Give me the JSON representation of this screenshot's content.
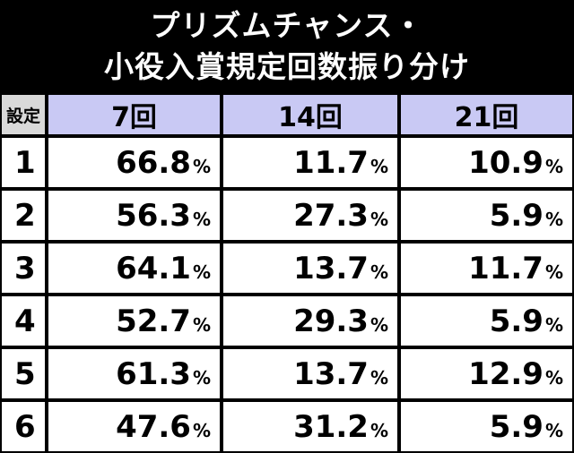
{
  "title": {
    "line1": "プリズムチャンス・",
    "line2": "小役入賞規定回数振り分け"
  },
  "table": {
    "header_setting": "設定",
    "columns": [
      "7回",
      "14回",
      "21回"
    ],
    "pct_symbol": "%",
    "rows": [
      {
        "setting": "1",
        "values": [
          "66.8",
          "11.7",
          "10.9"
        ]
      },
      {
        "setting": "2",
        "values": [
          "56.3",
          "27.3",
          "5.9"
        ]
      },
      {
        "setting": "3",
        "values": [
          "64.1",
          "13.7",
          "11.7"
        ]
      },
      {
        "setting": "4",
        "values": [
          "52.7",
          "29.3",
          "5.9"
        ]
      },
      {
        "setting": "5",
        "values": [
          "61.3",
          "13.7",
          "12.9"
        ]
      },
      {
        "setting": "6",
        "values": [
          "47.6",
          "31.2",
          "5.9"
        ]
      }
    ]
  },
  "colors": {
    "background": "#000000",
    "header_bg": "#c9c9f4",
    "setting_header_bg": "#d9d9d9",
    "cell_bg": "#ffffff"
  }
}
